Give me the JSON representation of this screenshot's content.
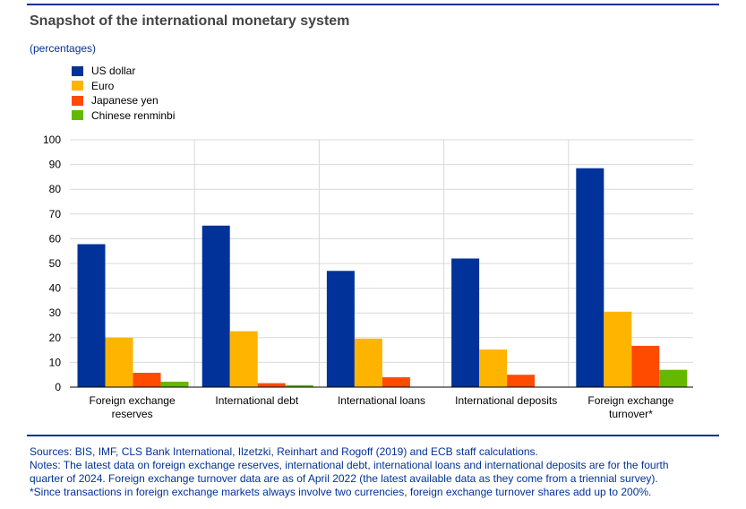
{
  "header": {
    "title": "Snapshot of the international monetary system",
    "subtitle": "(percentages)"
  },
  "legend": [
    {
      "label": "US dollar",
      "color": "#003299"
    },
    {
      "label": "Euro",
      "color": "#FFB400"
    },
    {
      "label": "Japanese yen",
      "color": "#FF4B00"
    },
    {
      "label": "Chinese renminbi",
      "color": "#65B800"
    }
  ],
  "chart_data": {
    "type": "bar",
    "title": "Snapshot of the international monetary system",
    "ylabel": "(percentages)",
    "ylim": [
      0,
      100
    ],
    "yticks": [
      0,
      10,
      20,
      30,
      40,
      50,
      60,
      70,
      80,
      90,
      100
    ],
    "grid": true,
    "legend_position": "top-left",
    "categories": [
      [
        "Foreign exchange",
        "reserves"
      ],
      [
        "International debt"
      ],
      [
        "International loans"
      ],
      [
        "International deposits"
      ],
      [
        "Foreign exchange",
        "turnover*"
      ]
    ],
    "series": [
      {
        "name": "US dollar",
        "color": "#003299",
        "values": [
          57.8,
          65.3,
          47.0,
          52.0,
          88.5
        ]
      },
      {
        "name": "Euro",
        "color": "#FFB400",
        "values": [
          20.0,
          22.6,
          19.6,
          15.2,
          30.5
        ]
      },
      {
        "name": "Japanese yen",
        "color": "#FF4B00",
        "values": [
          5.8,
          1.6,
          4.0,
          5.0,
          16.7
        ]
      },
      {
        "name": "Chinese renminbi",
        "color": "#65B800",
        "values": [
          2.2,
          0.8,
          null,
          null,
          7.0
        ]
      }
    ]
  },
  "footer": {
    "sources": "Sources: BIS, IMF, CLS Bank International, Ilzetzki, Reinhart and Rogoff (2019) and ECB staff calculations.",
    "notes_line1": "Notes: The latest data on foreign exchange reserves, international debt, international loans and international deposits are for the fourth",
    "notes_line2": "quarter of 2024. Foreign exchange turnover data are as of April 2022 (the latest available data as they come from a triennial survey).",
    "notes_line3": "*Since transactions in foreign exchange markets always involve two currencies, foreign exchange turnover shares add up to 200%."
  }
}
